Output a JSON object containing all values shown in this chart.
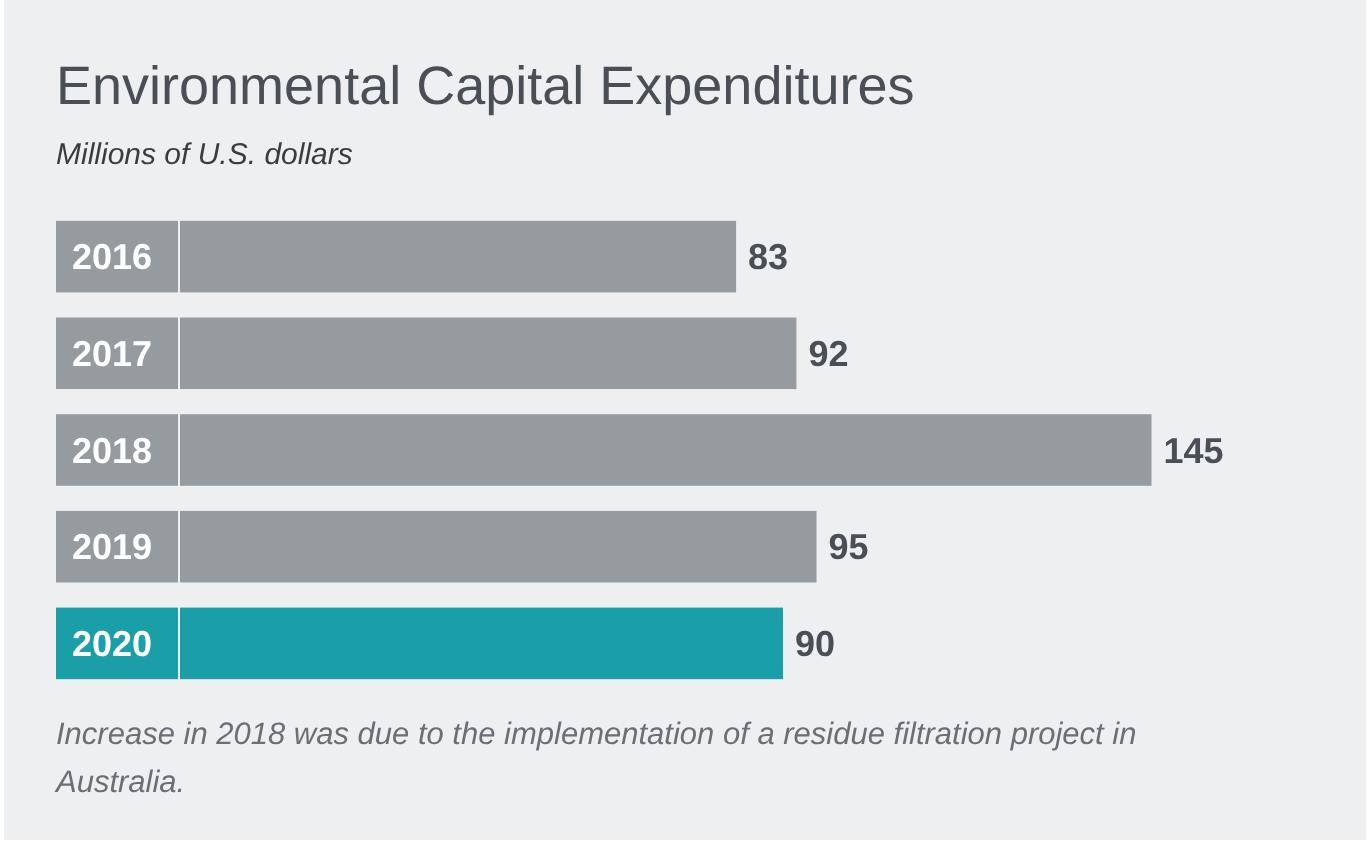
{
  "chart_data": {
    "type": "bar",
    "orientation": "horizontal",
    "title": "Environmental Capital Expenditures",
    "subtitle": "Millions of U.S. dollars",
    "categories": [
      "2016",
      "2017",
      "2018",
      "2019",
      "2020"
    ],
    "values": [
      83,
      92,
      145,
      95,
      90
    ],
    "colors": [
      "#969ba0",
      "#969ba0",
      "#969ba0",
      "#969ba0",
      "#1a9ea7"
    ],
    "data_labels": true,
    "annotations": [
      "Increase in 2018 was due to the implementation of a residue filtration project in Australia."
    ]
  }
}
